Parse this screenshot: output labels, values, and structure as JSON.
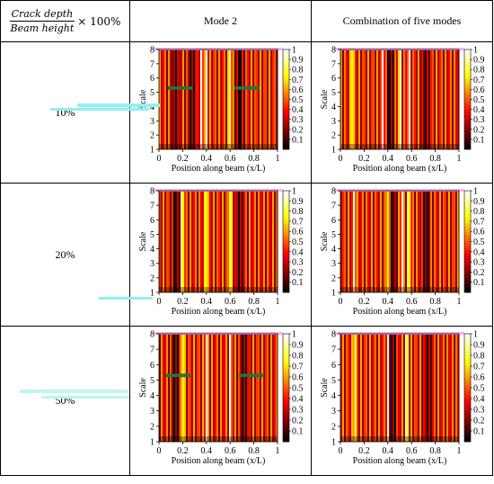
{
  "header": {
    "corner": {
      "numerator": "Crack depth",
      "denominator": "Beam height",
      "multiplier": "× 100%"
    },
    "columns": [
      "Mode 2",
      "Combination of five modes"
    ]
  },
  "rows": [
    {
      "label": "10%"
    },
    {
      "label": "20%"
    },
    {
      "label": "50%"
    }
  ],
  "axes": {
    "xlabel": "Position along beam (x/L)",
    "ylabel": "Scale",
    "xticks": [
      "0",
      "0.2",
      "0.4",
      "0.6",
      "0.8",
      "1"
    ],
    "yticks": [
      "1",
      "2",
      "3",
      "4",
      "5",
      "6",
      "7",
      "8"
    ],
    "cticks": [
      "0.1",
      "0.2",
      "0.3",
      "0.4",
      "0.5",
      "0.6",
      "0.7",
      "0.8",
      "0.9",
      "1"
    ]
  },
  "chart_data": [
    {
      "type": "heatmap",
      "row": "10%",
      "column": "Mode 2",
      "xlim": [
        0,
        1
      ],
      "ylim": [
        1,
        8
      ],
      "clim": [
        0,
        1
      ],
      "colormap": "hot",
      "bright_bands_x": [
        0.36,
        0.4,
        0.6
      ],
      "dark_bands_x": [
        0.14,
        0.28,
        0.68
      ],
      "mark_x": [
        0.18,
        0.74
      ],
      "mark_y": 5.3
    },
    {
      "type": "heatmap",
      "row": "10%",
      "column": "Combination of five modes",
      "xlim": [
        0,
        1
      ],
      "ylim": [
        1,
        8
      ],
      "clim": [
        0,
        1
      ],
      "colormap": "hot",
      "bright_bands_x": [
        0.1,
        0.36,
        0.5,
        0.58
      ],
      "dark_bands_x": [
        0.42,
        0.72
      ]
    },
    {
      "type": "heatmap",
      "row": "20%",
      "column": "Mode 2",
      "xlim": [
        0,
        1
      ],
      "ylim": [
        1,
        8
      ],
      "clim": [
        0,
        1
      ],
      "colormap": "hot",
      "bright_bands_x": [
        0.2,
        0.4,
        0.6
      ],
      "dark_bands_x": [
        0.14,
        0.68
      ]
    },
    {
      "type": "heatmap",
      "row": "20%",
      "column": "Combination of five modes",
      "xlim": [
        0,
        1
      ],
      "ylim": [
        1,
        8
      ],
      "clim": [
        0,
        1
      ],
      "colormap": "hot",
      "bright_bands_x": [
        0.12,
        0.4,
        0.52,
        0.58
      ],
      "dark_bands_x": [
        0.44,
        0.72
      ]
    },
    {
      "type": "heatmap",
      "row": "50%",
      "column": "Mode 2",
      "xlim": [
        0,
        1
      ],
      "ylim": [
        1,
        8
      ],
      "clim": [
        0,
        1
      ],
      "colormap": "hot",
      "bright_bands_x": [
        0.2,
        0.4,
        0.6
      ],
      "dark_bands_x": [
        0.14,
        0.72
      ],
      "mark_x": [
        0.16,
        0.78
      ],
      "mark_y": 5.3
    },
    {
      "type": "heatmap",
      "row": "50%",
      "column": "Combination of five modes",
      "xlim": [
        0,
        1
      ],
      "ylim": [
        1,
        8
      ],
      "clim": [
        0,
        1
      ],
      "colormap": "hot",
      "bright_bands_x": [
        0.12,
        0.4,
        0.56
      ],
      "dark_bands_x": [
        0.44,
        0.74
      ]
    }
  ]
}
